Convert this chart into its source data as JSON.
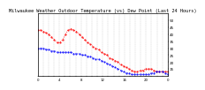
{
  "title": "Milwaukee Weather Outdoor Temperature (vs) Dew Point (Last 24 Hours)",
  "title_fontsize": 3.8,
  "bg_color": "#ffffff",
  "plot_bg_color": "#ffffff",
  "border_color": "#000000",
  "grid_color": "#aaaaaa",
  "temp_color": "#ff0000",
  "dew_color": "#0000ff",
  "ylim": [
    10,
    55
  ],
  "yticks": [
    15,
    20,
    25,
    30,
    35,
    40,
    45,
    50
  ],
  "ylabel_fontsize": 3.0,
  "xlabel_fontsize": 2.8,
  "marker_size": 1.0,
  "temp_values": [
    43,
    43,
    42,
    41,
    40,
    38,
    36,
    34,
    34,
    36,
    40,
    43,
    44,
    43,
    42,
    40,
    38,
    36,
    34,
    33,
    31,
    30,
    29,
    27,
    26,
    25,
    23,
    22,
    21,
    20,
    18,
    17,
    16,
    15,
    14,
    13,
    13,
    14,
    14,
    15,
    15,
    15,
    14,
    13,
    13,
    13,
    13,
    13
  ],
  "dew_values": [
    30,
    30,
    30,
    29,
    29,
    28,
    28,
    27,
    27,
    27,
    27,
    27,
    27,
    26,
    26,
    26,
    25,
    25,
    24,
    24,
    23,
    22,
    22,
    21,
    20,
    19,
    18,
    17,
    16,
    15,
    14,
    13,
    12,
    12,
    11,
    11,
    11,
    11,
    11,
    11,
    11,
    12,
    12,
    13,
    13,
    13,
    12,
    11
  ],
  "xtick_labels": [
    "0",
    "",
    "",
    "",
    "4",
    "",
    "",
    "",
    "8",
    "",
    "",
    "",
    "12",
    "",
    "",
    "",
    "16",
    "",
    "",
    "",
    "20",
    "",
    "",
    "",
    "0"
  ],
  "n_xticks": 25
}
